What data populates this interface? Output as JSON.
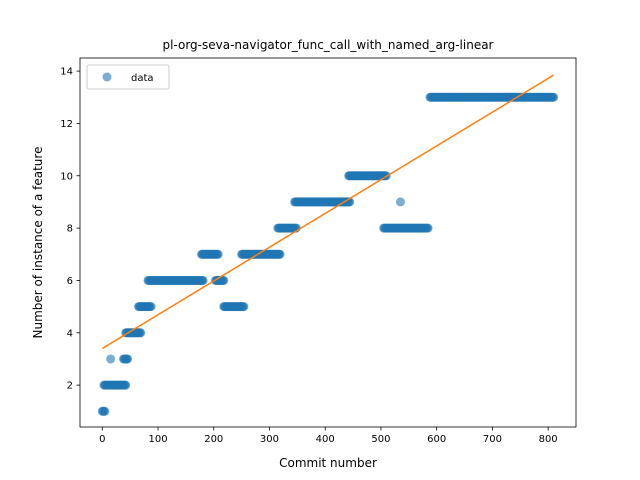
{
  "chart_data": {
    "type": "scatter",
    "title": "pl-org-seva-navigator_func_call_with_named_arg-linear",
    "xlabel": "Commit number",
    "ylabel": "Number of instance of a feature",
    "xlim": [
      -40,
      850
    ],
    "ylim": [
      0.4,
      14.5
    ],
    "xticks": [
      0,
      100,
      200,
      300,
      400,
      500,
      600,
      700,
      800
    ],
    "yticks": [
      2,
      4,
      6,
      8,
      10,
      12,
      14
    ],
    "grid": false,
    "legend_position": "upper left",
    "legend": [
      "data"
    ],
    "colors": {
      "data": "#1f77b4",
      "fit": "#ff7f0e"
    },
    "series": [
      {
        "name": "data",
        "kind": "points",
        "segments": [
          {
            "x_start": 0,
            "x_end": 5,
            "y": 1
          },
          {
            "x_start": 3,
            "x_end": 42,
            "y": 2
          },
          {
            "x_start": 15,
            "x_end": 15,
            "y": 3
          },
          {
            "x_start": 38,
            "x_end": 46,
            "y": 3
          },
          {
            "x_start": 42,
            "x_end": 70,
            "y": 4
          },
          {
            "x_start": 65,
            "x_end": 88,
            "y": 5
          },
          {
            "x_start": 82,
            "x_end": 182,
            "y": 6
          },
          {
            "x_start": 178,
            "x_end": 208,
            "y": 7
          },
          {
            "x_start": 203,
            "x_end": 218,
            "y": 6
          },
          {
            "x_start": 218,
            "x_end": 255,
            "y": 5
          },
          {
            "x_start": 250,
            "x_end": 320,
            "y": 7
          },
          {
            "x_start": 315,
            "x_end": 348,
            "y": 8
          },
          {
            "x_start": 345,
            "x_end": 445,
            "y": 9
          },
          {
            "x_start": 442,
            "x_end": 510,
            "y": 10
          },
          {
            "x_start": 505,
            "x_end": 585,
            "y": 8
          },
          {
            "x_start": 535,
            "x_end": 535,
            "y": 9
          },
          {
            "x_start": 588,
            "x_end": 810,
            "y": 13
          }
        ]
      },
      {
        "name": "",
        "kind": "line",
        "x": [
          0,
          810
        ],
        "y": [
          3.4,
          13.85
        ]
      }
    ]
  }
}
